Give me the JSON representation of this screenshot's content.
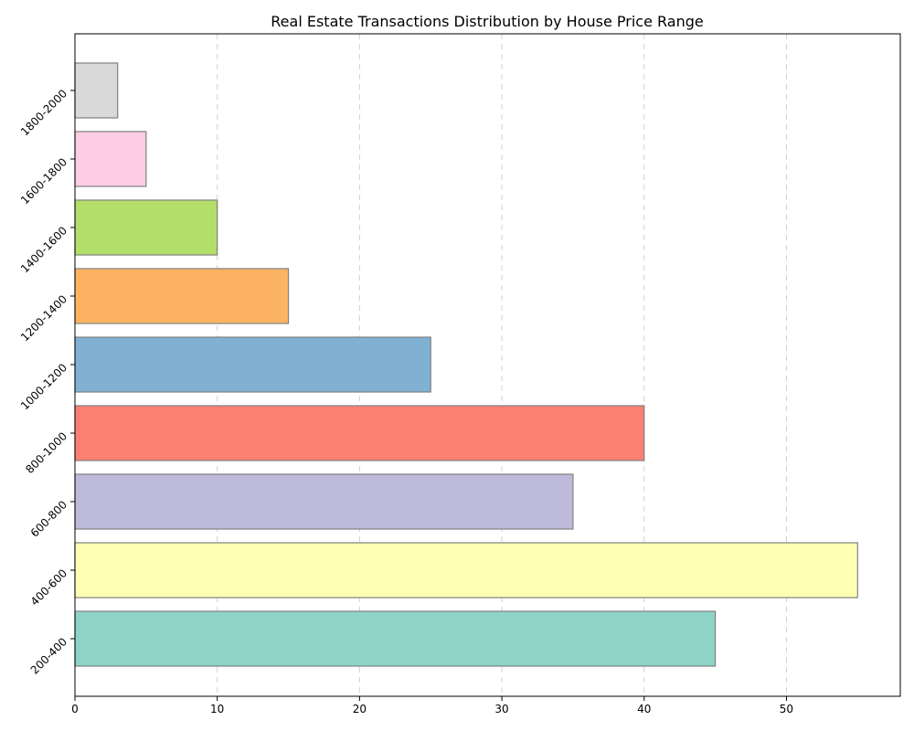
{
  "chart_data": {
    "type": "bar",
    "orientation": "horizontal",
    "title": "Real Estate Transactions Distribution by House Price Range",
    "xlabel": "",
    "ylabel": "",
    "categories": [
      "200-400",
      "400-600",
      "600-800",
      "800-1000",
      "1000-1200",
      "1200-1400",
      "1400-1600",
      "1600-1800",
      "1800-2000"
    ],
    "values": [
      45,
      55,
      35,
      40,
      25,
      15,
      10,
      5,
      3
    ],
    "colors": [
      "#8dd3c7",
      "#ffffb3",
      "#bebada",
      "#fb8072",
      "#80b1d3",
      "#fdb462",
      "#b3de69",
      "#fccde5",
      "#d9d9d9"
    ],
    "xlim": [
      0,
      58
    ],
    "xticks": [
      0,
      10,
      20,
      30,
      40,
      50
    ],
    "grid": "x-dashed",
    "legend": "none"
  }
}
